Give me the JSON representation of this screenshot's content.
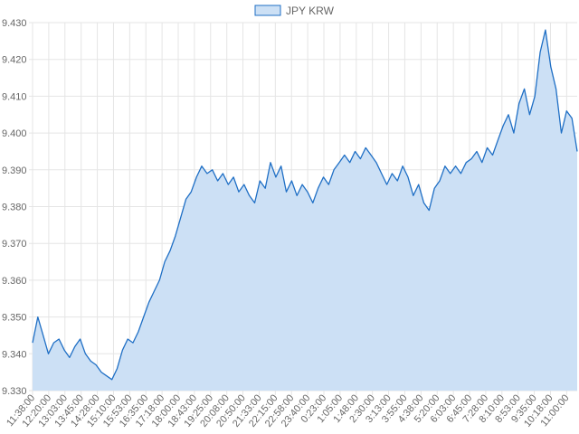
{
  "chart_data": {
    "type": "area",
    "legend": {
      "position": "top",
      "entries": [
        "JPY KRW"
      ]
    },
    "series": [
      {
        "name": "JPY KRW",
        "color": "#1f6fc5",
        "fill": "#cce0f5",
        "values": [
          9.343,
          9.35,
          9.345,
          9.34,
          9.343,
          9.344,
          9.341,
          9.339,
          9.342,
          9.344,
          9.34,
          9.338,
          9.337,
          9.335,
          9.334,
          9.333,
          9.336,
          9.341,
          9.344,
          9.343,
          9.346,
          9.35,
          9.354,
          9.357,
          9.36,
          9.365,
          9.368,
          9.372,
          9.377,
          9.382,
          9.384,
          9.388,
          9.391,
          9.389,
          9.39,
          9.387,
          9.389,
          9.386,
          9.388,
          9.384,
          9.386,
          9.383,
          9.381,
          9.387,
          9.385,
          9.392,
          9.388,
          9.391,
          9.384,
          9.387,
          9.383,
          9.386,
          9.384,
          9.381,
          9.385,
          9.388,
          9.386,
          9.39,
          9.392,
          9.394,
          9.392,
          9.395,
          9.393,
          9.396,
          9.394,
          9.392,
          9.389,
          9.386,
          9.389,
          9.387,
          9.391,
          9.388,
          9.383,
          9.386,
          9.381,
          9.379,
          9.385,
          9.387,
          9.391,
          9.389,
          9.391,
          9.389,
          9.392,
          9.393,
          9.395,
          9.392,
          9.396,
          9.394,
          9.398,
          9.402,
          9.405,
          9.4,
          9.408,
          9.412,
          9.405,
          9.41,
          9.422,
          9.428,
          9.418,
          9.412,
          9.4,
          9.406,
          9.404,
          9.395
        ]
      }
    ],
    "x_tick_labels": [
      "11:38:00",
      "12:20:00",
      "13:03:00",
      "13:45:00",
      "14:28:00",
      "15:10:00",
      "15:53:00",
      "16:35:00",
      "17:18:00",
      "18:00:00",
      "18:43:00",
      "19:25:00",
      "20:08:00",
      "20:50:00",
      "21:33:00",
      "22:15:00",
      "22:58:00",
      "23:40:00",
      "0:23:00",
      "1:05:00",
      "1:48:00",
      "2:30:00",
      "3:13:00",
      "3:55:00",
      "4:38:00",
      "5:20:00",
      "6:03:00",
      "6:45:00",
      "7:28:00",
      "8:10:00",
      "8:53:00",
      "9:35:00",
      "10:18:00",
      "11:00:00"
    ],
    "y_tick_labels": [
      "9.430",
      "9.420",
      "9.410",
      "9.400",
      "9.390",
      "9.380",
      "9.370",
      "9.360",
      "9.350",
      "9.340",
      "9.330"
    ],
    "ylim": [
      9.33,
      9.43
    ],
    "grid": true,
    "title": "",
    "xlabel": "",
    "ylabel": ""
  }
}
